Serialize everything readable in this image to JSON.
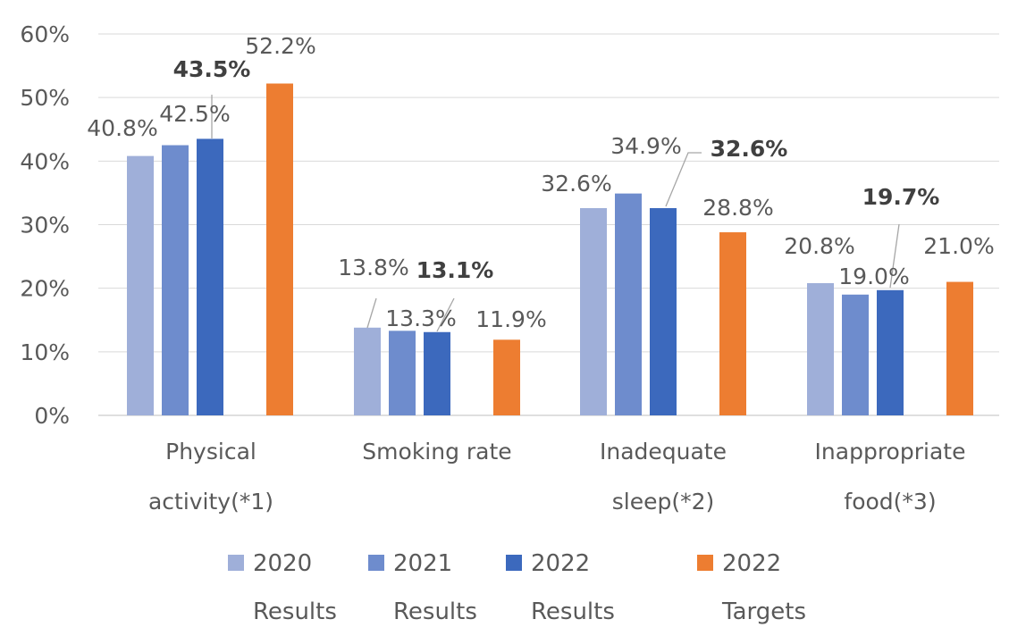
{
  "chart_data": {
    "type": "bar",
    "categories": [
      [
        "Physical",
        "activity(*1)"
      ],
      [
        "Smoking rate"
      ],
      [
        "Inadequate",
        "sleep(*2)"
      ],
      [
        "Inappropriate",
        "food(*3)"
      ]
    ],
    "series": [
      {
        "name_line1": "2020",
        "name_line2": "Results",
        "color": "#9fafd9",
        "values": [
          40.8,
          13.8,
          32.6,
          20.8
        ],
        "labels": [
          "40.8%",
          "13.8%",
          "32.6%",
          "20.8%"
        ]
      },
      {
        "name_line1": "2021",
        "name_line2": "Results",
        "color": "#6e8ccd",
        "values": [
          42.5,
          13.3,
          34.9,
          19.0
        ],
        "labels": [
          "42.5%",
          "13.3%",
          "34.9%",
          "19.0%"
        ]
      },
      {
        "name_line1": "2022",
        "name_line2": "Results",
        "color": "#3c69bd",
        "bold_labels": true,
        "values": [
          43.5,
          13.1,
          32.6,
          19.7
        ],
        "labels": [
          "43.5%",
          "13.1%",
          "32.6%",
          "19.7%"
        ]
      },
      {
        "name_line1": "2022",
        "name_line2": "Targets",
        "color": "#ed7d31",
        "values": [
          52.2,
          11.9,
          28.8,
          21.0
        ],
        "labels": [
          "52.2%",
          "11.9%",
          "28.8%",
          "21.0%"
        ]
      }
    ],
    "ylim": [
      0,
      60
    ],
    "yticks": [
      0,
      10,
      20,
      30,
      40,
      50,
      60
    ],
    "ytick_labels": [
      "0%",
      "10%",
      "20%",
      "30%",
      "40%",
      "50%",
      "60%"
    ],
    "grid": true,
    "legend_position": "bottom"
  }
}
